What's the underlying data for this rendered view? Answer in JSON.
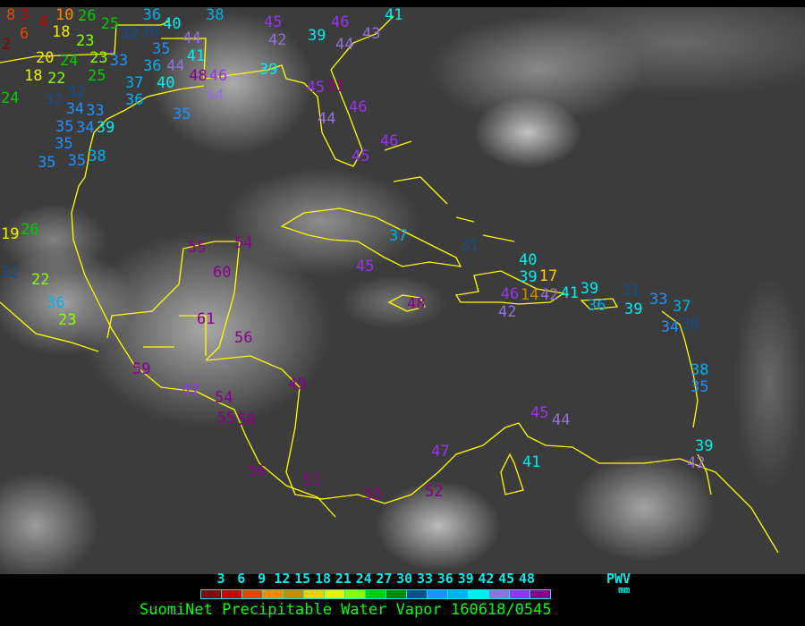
{
  "title": "SuomiNet Precipitable Water Vapor 160618/0545",
  "legend": {
    "ticks": [
      "3",
      "6",
      "9",
      "12",
      "15",
      "18",
      "21",
      "24",
      "27",
      "30",
      "33",
      "36",
      "39",
      "42",
      "45",
      "48"
    ],
    "label": "PWV",
    "unit": "mm",
    "colors": [
      "#8b0000",
      "#cc0000",
      "#ee4400",
      "#ff8800",
      "#cc8800",
      "#ffcc00",
      "#eeee00",
      "#88ff00",
      "#00cc00",
      "#008800",
      "#104e8b",
      "#1e90ff",
      "#00b0ee",
      "#00eeee",
      "#9370db",
      "#9932ee",
      "#8b008b"
    ]
  },
  "coastline_color": "#ffff00",
  "stations": [
    "8",
    "3",
    "4",
    "6",
    "2",
    "10",
    "18",
    "26",
    "25",
    "32",
    "30",
    "36",
    "40",
    "38",
    "35",
    "44",
    "41",
    "23",
    "20",
    "24",
    "23",
    "33",
    "36",
    "44",
    "18",
    "22",
    "25",
    "37",
    "40",
    "48",
    "46",
    "44",
    "24",
    "32",
    "32",
    "34",
    "36",
    "35",
    "33",
    "39",
    "35",
    "34",
    "35",
    "35",
    "38",
    "35",
    "46",
    "39",
    "43",
    "44",
    "42",
    "45",
    "41",
    "39",
    "45",
    "51",
    "46",
    "44",
    "46",
    "45",
    "26",
    "19",
    "32",
    "22",
    "36",
    "23",
    "55",
    "54",
    "60",
    "61",
    "56",
    "59",
    "47",
    "54",
    "55",
    "50",
    "49",
    "56",
    "51",
    "55",
    "52",
    "47",
    "45",
    "44",
    "41",
    "39",
    "42",
    "37",
    "31",
    "45",
    "48",
    "40",
    "39",
    "17",
    "14",
    "46",
    "42",
    "42",
    "41",
    "39",
    "36",
    "31",
    "39",
    "33",
    "37",
    "30",
    "34",
    "38",
    "35"
  ]
}
